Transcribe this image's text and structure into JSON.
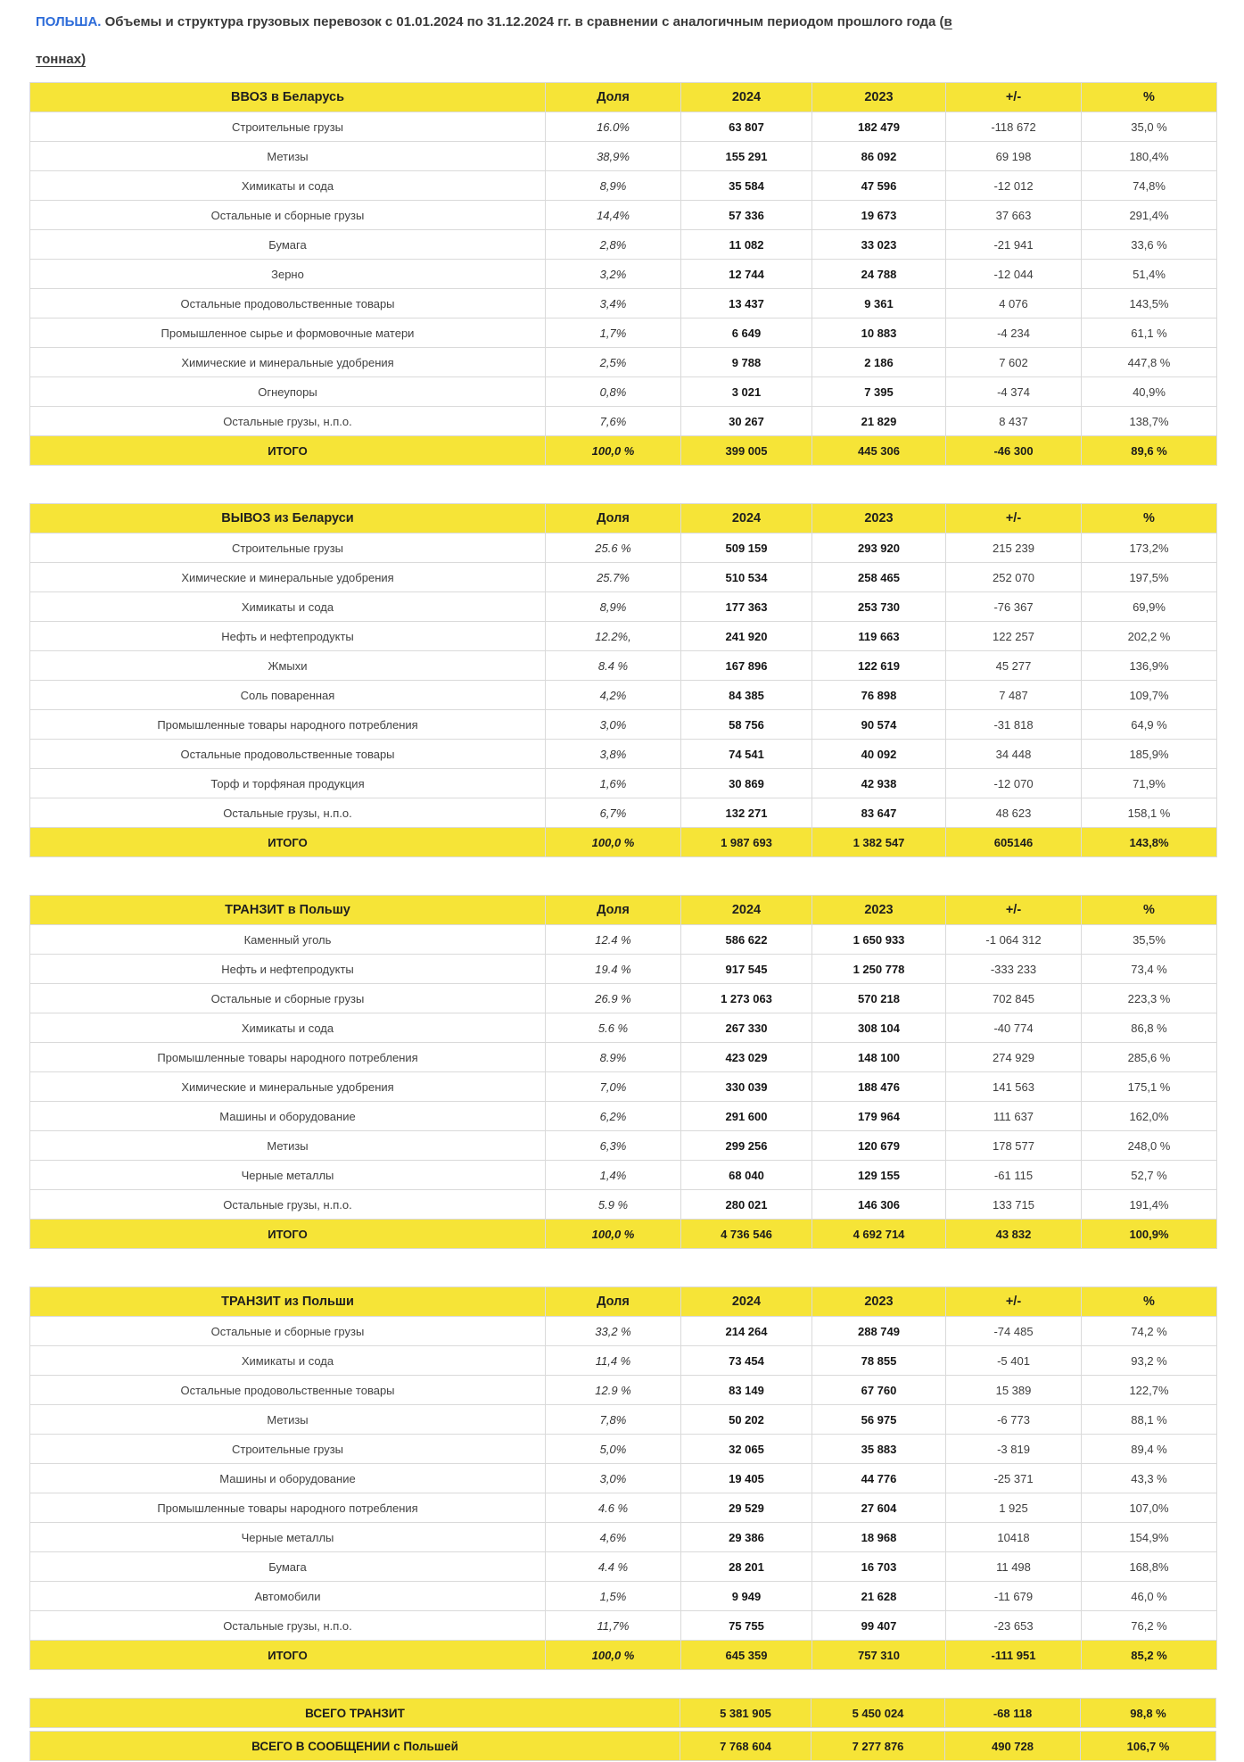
{
  "title": {
    "country": "ПОЛЬША.",
    "body": " Объемы и структура грузовых перевозок с 01.01.2024 по 31.12.2024 гг. в сравнении с аналогичным периодом прошлого года (",
    "unit_word_1": "в",
    "unit_word_2": "тоннах)"
  },
  "columns": [
    "Доля",
    "2024",
    "2023",
    "+/-",
    "%"
  ],
  "colors": {
    "accent_yellow": "#f6e437",
    "title_blue": "#2c6bd9",
    "border_gray": "#dadada",
    "strip_blue": "#dee6f9"
  },
  "tables": [
    {
      "title": "ВВОЗ в Беларусь",
      "rows": [
        {
          "label": "Строительные грузы",
          "share": "16.0%",
          "v2024": "63 807",
          "v2023": "182 479",
          "diff": "-118 672",
          "pct": "35,0 %"
        },
        {
          "label": "Метизы",
          "share": "38,9%",
          "v2024": "155 291",
          "v2023": "86 092",
          "diff": "69 198",
          "pct": "180,4%"
        },
        {
          "label": "Химикаты и сода",
          "share": "8,9%",
          "v2024": "35 584",
          "v2023": "47 596",
          "diff": "-12 012",
          "pct": "74,8%"
        },
        {
          "label": "Остальные и сборные грузы",
          "share": "14,4%",
          "v2024": "57 336",
          "v2023": "19 673",
          "diff": "37 663",
          "pct": "291,4%"
        },
        {
          "label": "Бумага",
          "share": "2,8%",
          "v2024": "11 082",
          "v2023": "33 023",
          "diff": "-21 941",
          "pct": "33,6 %"
        },
        {
          "label": "Зерно",
          "share": "3,2%",
          "v2024": "12 744",
          "v2023": "24 788",
          "diff": "-12 044",
          "pct": "51,4%"
        },
        {
          "label": "Остальные продовольственные товары",
          "share": "3,4%",
          "v2024": "13 437",
          "v2023": "9 361",
          "diff": "4 076",
          "pct": "143,5%"
        },
        {
          "label": "Промышленное сырье и формовочные матери",
          "share": "1,7%",
          "v2024": "6 649",
          "v2023": "10 883",
          "diff": "-4 234",
          "pct": "61,1 %"
        },
        {
          "label": "Химические и минеральные удобрения",
          "share": "2,5%",
          "v2024": "9 788",
          "v2023": "2 186",
          "diff": "7 602",
          "pct": "447,8 %"
        },
        {
          "label": "Огнеупоры",
          "share": "0,8%",
          "v2024": "3 021",
          "v2023": "7 395",
          "diff": "-4 374",
          "pct": "40,9%"
        },
        {
          "label": "Остальные грузы, н.п.о.",
          "share": "7,6%",
          "v2024": "30 267",
          "v2023": "21 829",
          "diff": "8 437",
          "pct": "138,7%"
        }
      ],
      "total": {
        "label": "ИТОГО",
        "share": "100,0 %",
        "v2024": "399 005",
        "v2023": "445 306",
        "diff": "-46 300",
        "pct": "89,6 %"
      }
    },
    {
      "title": "ВЫВОЗ из Беларуси",
      "rows": [
        {
          "label": "Строительные грузы",
          "share": "25.6 %",
          "v2024": "509 159",
          "v2023": "293 920",
          "diff": "215 239",
          "pct": "173,2%"
        },
        {
          "label": "Химические и минеральные удобрения",
          "share": "25.7%",
          "v2024": "510 534",
          "v2023": "258 465",
          "diff": "252 070",
          "pct": "197,5%"
        },
        {
          "label": "Химикаты и сода",
          "share": "8,9%",
          "v2024": "177 363",
          "v2023": "253 730",
          "diff": "-76 367",
          "pct": "69,9%"
        },
        {
          "label": "Нефть и нефтепродукты",
          "share": "12.2%,",
          "v2024": "241 920",
          "v2023": "119 663",
          "diff": "122 257",
          "pct": "202,2 %"
        },
        {
          "label": "Жмыхи",
          "share": "8.4 %",
          "v2024": "167 896",
          "v2023": "122 619",
          "diff": "45 277",
          "pct": "136,9%"
        },
        {
          "label": "Соль поваренная",
          "share": "4,2%",
          "v2024": "84 385",
          "v2023": "76 898",
          "diff": "7 487",
          "pct": "109,7%"
        },
        {
          "label": "Промышленные товары народного потребления",
          "share": "3,0%",
          "v2024": "58 756",
          "v2023": "90 574",
          "diff": "-31 818",
          "pct": "64,9 %"
        },
        {
          "label": "Остальные продовольственные товары",
          "share": "3,8%",
          "v2024": "74 541",
          "v2023": "40 092",
          "diff": "34 448",
          "pct": "185,9%"
        },
        {
          "label": "Торф и торфяная продукция",
          "share": "1,6%",
          "v2024": "30 869",
          "v2023": "42 938",
          "diff": "-12 070",
          "pct": "71,9%"
        },
        {
          "label": "Остальные грузы, н.п.о.",
          "share": "6,7%",
          "v2024": "132 271",
          "v2023": "83 647",
          "diff": "48 623",
          "pct": "158,1 %"
        }
      ],
      "total": {
        "label": "ИТОГО",
        "share": "100,0 %",
        "v2024": "1 987 693",
        "v2023": "1 382 547",
        "diff": "605146",
        "pct": "143,8%"
      }
    },
    {
      "title": "ТРАНЗИТ в Польшу",
      "rows": [
        {
          "label": "Каменный уголь",
          "share": "12.4 %",
          "v2024": "586 622",
          "v2023": "1 650 933",
          "diff": "-1 064 312",
          "pct": "35,5%"
        },
        {
          "label": "Нефть и нефтепродукты",
          "share": "19.4 %",
          "v2024": "917 545",
          "v2023": "1 250 778",
          "diff": "-333 233",
          "pct": "73,4 %"
        },
        {
          "label": "Остальные и сборные грузы",
          "share": "26.9 %",
          "v2024": "1 273 063",
          "v2023": "570 218",
          "diff": "702 845",
          "pct": "223,3 %"
        },
        {
          "label": "Химикаты и сода",
          "share": "5.6 %",
          "v2024": "267 330",
          "v2023": "308 104",
          "diff": "-40 774",
          "pct": "86,8 %"
        },
        {
          "label": "Промышленные товары народного потребления",
          "share": "8.9%",
          "v2024": "423 029",
          "v2023": "148 100",
          "diff": "274 929",
          "pct": "285,6 %"
        },
        {
          "label": "Химические и минеральные удобрения",
          "share": "7,0%",
          "v2024": "330 039",
          "v2023": "188 476",
          "diff": "141 563",
          "pct": "175,1 %"
        },
        {
          "label": "Машины и оборудование",
          "share": "6,2%",
          "v2024": "291 600",
          "v2023": "179 964",
          "diff": "111 637",
          "pct": "162,0%"
        },
        {
          "label": "Метизы",
          "share": "6,3%",
          "v2024": "299 256",
          "v2023": "120 679",
          "diff": "178 577",
          "pct": "248,0 %"
        },
        {
          "label": "Черные металлы",
          "share": "1,4%",
          "v2024": "68 040",
          "v2023": "129 155",
          "diff": "-61 115",
          "pct": "52,7 %"
        },
        {
          "label": "Остальные грузы, н.п.о.",
          "share": "5.9 %",
          "v2024": "280 021",
          "v2023": "146 306",
          "diff": "133 715",
          "pct": "191,4%"
        }
      ],
      "total": {
        "label": "ИТОГО",
        "share": "100,0 %",
        "v2024": "4 736 546",
        "v2023": "4 692 714",
        "diff": "43 832",
        "pct": "100,9%"
      }
    },
    {
      "title": "ТРАНЗИТ из Польши",
      "rows": [
        {
          "label": "Остальные и сборные грузы",
          "share": "33,2 %",
          "v2024": "214 264",
          "v2023": "288 749",
          "diff": "-74 485",
          "pct": "74,2 %"
        },
        {
          "label": "Химикаты и сода",
          "share": "11,4 %",
          "v2024": "73 454",
          "v2023": "78 855",
          "diff": "-5 401",
          "pct": "93,2 %"
        },
        {
          "label": "Остальные продовольственные товары",
          "share": "12.9 %",
          "v2024": "83 149",
          "v2023": "67 760",
          "diff": "15 389",
          "pct": "122,7%"
        },
        {
          "label": "Метизы",
          "share": "7,8%",
          "v2024": "50 202",
          "v2023": "56 975",
          "diff": "-6 773",
          "pct": "88,1 %"
        },
        {
          "label": "Строительные грузы",
          "share": "5,0%",
          "v2024": "32 065",
          "v2023": "35 883",
          "diff": "-3 819",
          "pct": "89,4 %"
        },
        {
          "label": "Машины и оборудование",
          "share": "3,0%",
          "v2024": "19 405",
          "v2023": "44 776",
          "diff": "-25 371",
          "pct": "43,3 %"
        },
        {
          "label": "Промышленные товары народного потребления",
          "share": "4.6 %",
          "v2024": "29 529",
          "v2023": "27 604",
          "diff": "1 925",
          "pct": "107,0%"
        },
        {
          "label": "Черные металлы",
          "share": "4,6%",
          "v2024": "29 386",
          "v2023": "18 968",
          "diff": "10418",
          "pct": "154,9%"
        },
        {
          "label": "Бумага",
          "share": "4.4 %",
          "v2024": "28 201",
          "v2023": "16 703",
          "diff": "11 498",
          "pct": "168,8%"
        },
        {
          "label": "Автомобили",
          "share": "1,5%",
          "v2024": "9 949",
          "v2023": "21 628",
          "diff": "-11 679",
          "pct": "46,0 %"
        },
        {
          "label": "Остальные грузы, н.п.о.",
          "share": "11,7%",
          "v2024": "75 755",
          "v2023": "99 407",
          "diff": "-23 653",
          "pct": "76,2 %"
        }
      ],
      "total": {
        "label": "ИТОГО",
        "share": "100,0 %",
        "v2024": "645 359",
        "v2023": "757 310",
        "diff": "-111 951",
        "pct": "85,2 %"
      }
    }
  ],
  "summary": {
    "rows": [
      {
        "label": "ВСЕГО ТРАНЗИТ",
        "v2024": "5 381 905",
        "v2023": "5 450 024",
        "diff": "-68 118",
        "pct": "98,8 %"
      },
      {
        "label": "ВСЕГО В СООБЩЕНИИ с Польшей",
        "v2024": "7 768 604",
        "v2023": "7 277 876",
        "diff": "490 728",
        "pct": "106,7 %"
      }
    ]
  }
}
